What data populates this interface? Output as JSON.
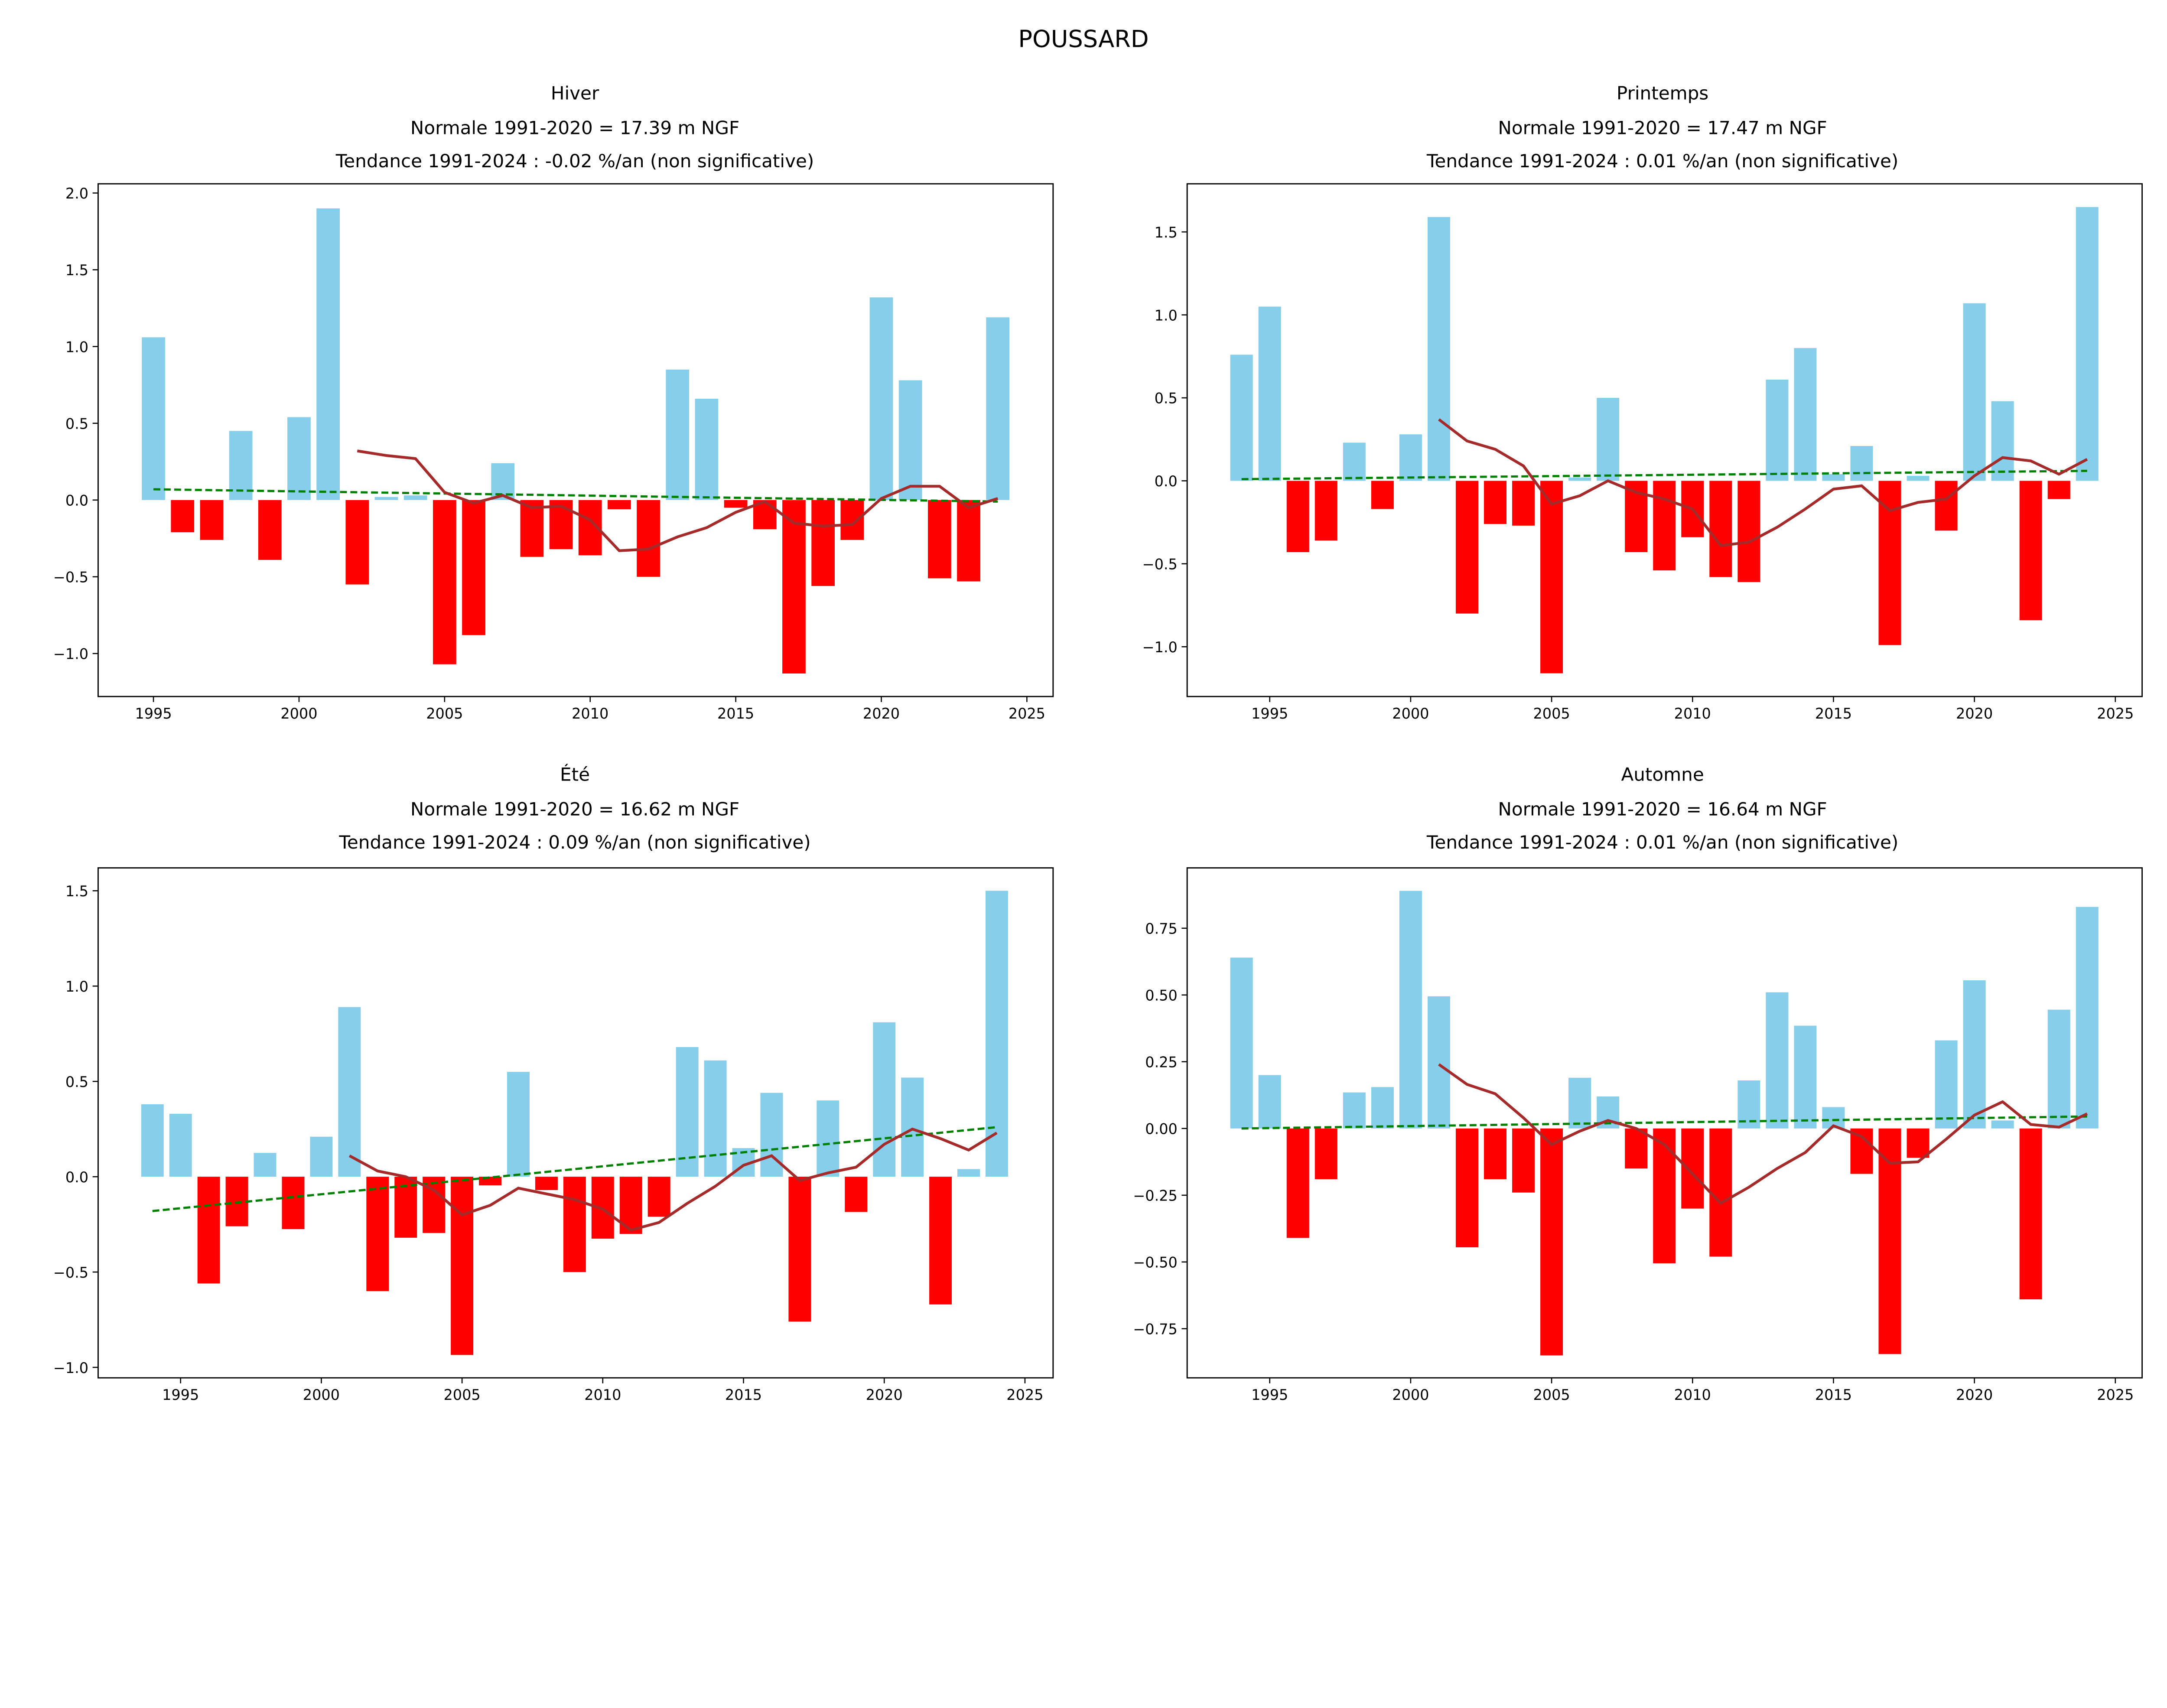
{
  "suptitle": "POUSSARD",
  "colors": {
    "positive": "#87CEEB",
    "negative": "#FF0000",
    "moving_average": "#A52A2A",
    "trend": "#008000"
  },
  "chart_data": [
    {
      "type": "bar",
      "title": [
        "Hiver",
        "Normale 1991-2020 = 17.39 m NGF",
        "Tendance 1991-2024 : -0.02 %/an (non significative)"
      ],
      "xlim": [
        1993.1,
        2025.9
      ],
      "ylim": [
        -1.28,
        2.06
      ],
      "xticks": [
        "1995",
        "2000",
        "2005",
        "2010",
        "2015",
        "2020",
        "2025"
      ],
      "yticks": [
        "−1.0",
        "−0.5",
        "0.0",
        "0.5",
        "1.0",
        "1.5",
        "2.0"
      ],
      "x": [
        1995,
        1996,
        1997,
        1998,
        1999,
        2000,
        2001,
        2002,
        2003,
        2004,
        2005,
        2006,
        2007,
        2008,
        2009,
        2010,
        2011,
        2012,
        2013,
        2014,
        2015,
        2016,
        2017,
        2018,
        2019,
        2020,
        2021,
        2022,
        2023,
        2024
      ],
      "values": [
        1.06,
        -0.21,
        -0.26,
        0.45,
        -0.39,
        0.54,
        1.9,
        -0.55,
        0.02,
        0.03,
        -1.07,
        -0.88,
        0.24,
        -0.37,
        -0.32,
        -0.36,
        -0.06,
        -0.5,
        0.85,
        0.66,
        -0.05,
        -0.19,
        -1.13,
        -0.56,
        -0.26,
        1.32,
        0.78,
        -0.51,
        -0.53,
        1.19
      ],
      "moving_average": {
        "x_start": 2002,
        "values": [
          0.32,
          0.29,
          0.27,
          0.05,
          -0.02,
          0.03,
          -0.05,
          -0.04,
          -0.13,
          -0.33,
          -0.32,
          -0.24,
          -0.18,
          -0.08,
          -0.01,
          -0.15,
          -0.17,
          -0.16,
          0.01,
          0.09,
          0.09,
          -0.05,
          0.01
        ]
      },
      "trend": {
        "x": [
          1995,
          2024
        ],
        "y": [
          0.07,
          -0.01
        ]
      }
    },
    {
      "type": "bar",
      "title": [
        "Printemps",
        "Normale 1991-2020 = 17.47 m NGF",
        "Tendance 1991-2024 : 0.01 %/an (non significative)"
      ],
      "xlim": [
        1992.07,
        2025.95
      ],
      "ylim": [
        -1.3,
        1.79
      ],
      "xticks": [
        "1995",
        "2000",
        "2005",
        "2010",
        "2015",
        "2020",
        "2025"
      ],
      "yticks": [
        "−1.0",
        "−0.5",
        "0.0",
        "0.5",
        "1.0",
        "1.5"
      ],
      "x": [
        1994,
        1995,
        1996,
        1997,
        1998,
        1999,
        2000,
        2001,
        2002,
        2003,
        2004,
        2005,
        2006,
        2007,
        2008,
        2009,
        2010,
        2011,
        2012,
        2013,
        2014,
        2015,
        2016,
        2017,
        2018,
        2019,
        2020,
        2021,
        2022,
        2023,
        2024
      ],
      "values": [
        0.76,
        1.05,
        -0.43,
        -0.36,
        0.23,
        -0.17,
        0.28,
        1.59,
        -0.8,
        -0.26,
        -0.27,
        -1.16,
        0.02,
        0.5,
        -0.43,
        -0.54,
        -0.34,
        -0.58,
        -0.61,
        0.61,
        0.8,
        0.04,
        0.21,
        -0.99,
        0.03,
        -0.3,
        1.07,
        0.48,
        -0.84,
        -0.11,
        1.65
      ],
      "moving_average": {
        "x_start": 2001,
        "values": [
          0.37,
          0.24,
          0.19,
          0.09,
          -0.14,
          -0.09,
          0.0,
          -0.07,
          -0.11,
          -0.17,
          -0.39,
          -0.37,
          -0.28,
          -0.17,
          -0.05,
          -0.03,
          -0.18,
          -0.13,
          -0.11,
          0.03,
          0.14,
          0.12,
          0.04,
          0.13
        ]
      },
      "trend": {
        "x": [
          1994,
          2024
        ],
        "y": [
          0.01,
          0.06
        ]
      }
    },
    {
      "type": "bar",
      "title": [
        "Été",
        "Normale 1991-2020 = 16.62 m NGF",
        "Tendance 1991-2024 : 0.09 %/an (non significative)"
      ],
      "xlim": [
        1992.07,
        2026.0
      ],
      "ylim": [
        -1.055,
        1.62
      ],
      "xticks": [
        "1995",
        "2000",
        "2005",
        "2010",
        "2015",
        "2020",
        "2025"
      ],
      "yticks": [
        "−1.0",
        "−0.5",
        "0.0",
        "0.5",
        "1.0",
        "1.5"
      ],
      "x": [
        1994,
        1995,
        1996,
        1997,
        1998,
        1999,
        2000,
        2001,
        2002,
        2003,
        2004,
        2005,
        2006,
        2007,
        2008,
        2009,
        2010,
        2011,
        2012,
        2013,
        2014,
        2015,
        2016,
        2017,
        2018,
        2019,
        2020,
        2021,
        2022,
        2023,
        2024
      ],
      "values": [
        0.38,
        0.33,
        -0.56,
        -0.26,
        0.125,
        -0.275,
        0.21,
        0.89,
        -0.6,
        -0.32,
        -0.295,
        -0.935,
        -0.045,
        0.55,
        -0.07,
        -0.5,
        -0.325,
        -0.3,
        -0.21,
        0.68,
        0.61,
        0.15,
        0.44,
        -0.76,
        0.4,
        -0.185,
        0.81,
        0.52,
        -0.67,
        0.04,
        1.5
      ],
      "moving_average": {
        "x_start": 2001,
        "values": [
          0.11,
          0.03,
          0.0,
          -0.07,
          -0.2,
          -0.15,
          -0.06,
          -0.09,
          -0.12,
          -0.17,
          -0.28,
          -0.24,
          -0.14,
          -0.05,
          0.06,
          0.11,
          -0.02,
          0.02,
          0.05,
          0.17,
          0.25,
          0.2,
          0.14,
          0.23
        ]
      },
      "trend": {
        "x": [
          1994,
          2024
        ],
        "y": [
          -0.18,
          0.26
        ]
      }
    },
    {
      "type": "bar",
      "title": [
        "Automne",
        "Normale 1991-2020 = 16.64 m NGF",
        "Tendance 1991-2024 : 0.01 %/an (non significative)"
      ],
      "xlim": [
        1992.07,
        2025.95
      ],
      "ylim": [
        -0.934,
        0.976
      ],
      "xticks": [
        "1995",
        "2000",
        "2005",
        "2010",
        "2015",
        "2020",
        "2025"
      ],
      "yticks": [
        "−0.75",
        "−0.50",
        "−0.25",
        "0.00",
        "0.25",
        "0.50",
        "0.75"
      ],
      "x": [
        1994,
        1995,
        1996,
        1997,
        1998,
        1999,
        2000,
        2001,
        2002,
        2003,
        2004,
        2005,
        2006,
        2007,
        2008,
        2009,
        2010,
        2011,
        2012,
        2013,
        2014,
        2015,
        2016,
        2017,
        2018,
        2019,
        2020,
        2021,
        2022,
        2023,
        2024
      ],
      "values": [
        0.64,
        0.2,
        -0.41,
        -0.19,
        0.135,
        0.155,
        0.89,
        0.495,
        -0.445,
        -0.19,
        -0.24,
        -0.85,
        0.19,
        0.12,
        -0.15,
        -0.505,
        -0.3,
        -0.48,
        0.18,
        0.51,
        0.385,
        0.08,
        -0.17,
        -0.845,
        -0.11,
        0.33,
        0.555,
        0.03,
        -0.64,
        0.445,
        0.83
      ],
      "moving_average": {
        "x_start": 2001,
        "values": [
          0.24,
          0.165,
          0.13,
          0.04,
          -0.06,
          -0.01,
          0.03,
          0.0,
          -0.06,
          -0.17,
          -0.28,
          -0.22,
          -0.15,
          -0.09,
          0.01,
          -0.03,
          -0.13,
          -0.125,
          -0.04,
          0.05,
          0.1,
          0.015,
          0.005,
          0.055
        ]
      },
      "trend": {
        "x": [
          1994,
          2024
        ],
        "y": [
          0.0,
          0.045
        ]
      }
    }
  ]
}
